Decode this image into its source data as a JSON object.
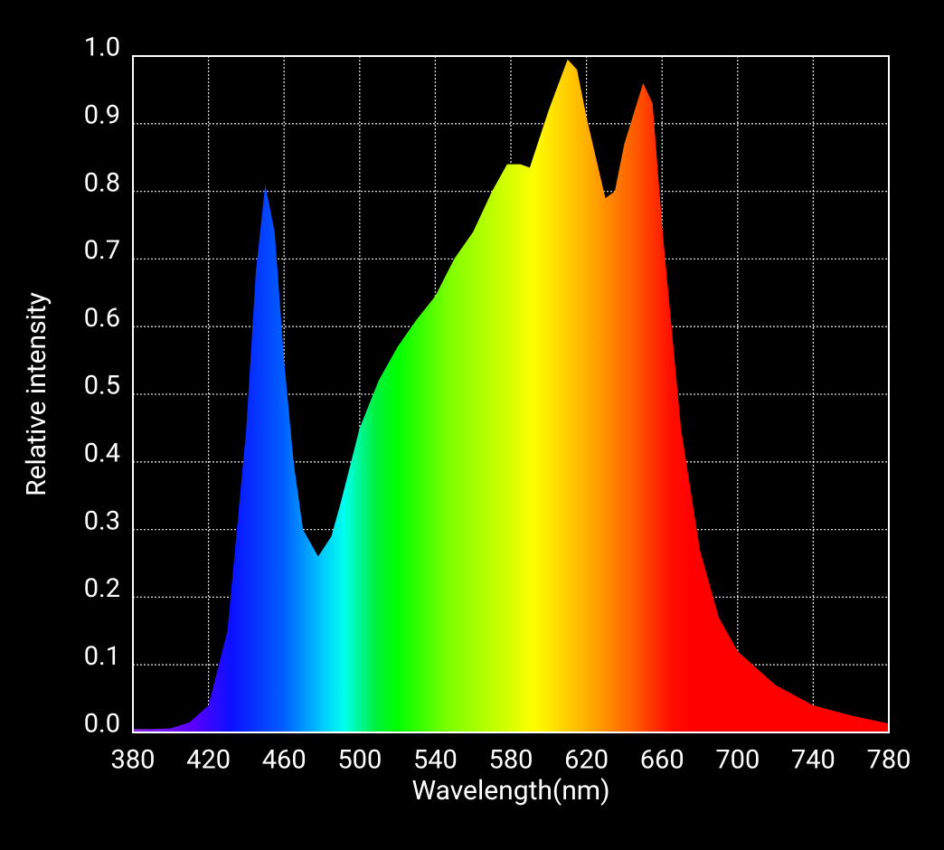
{
  "chart_data": {
    "type": "area",
    "x_label": "Wavelength(nm)",
    "y_label": "Relative intensity",
    "x": [
      380,
      390,
      400,
      410,
      420,
      430,
      440,
      445,
      450,
      455,
      460,
      465,
      470,
      478,
      485,
      490,
      500,
      510,
      520,
      530,
      540,
      550,
      560,
      570,
      578,
      585,
      590,
      600,
      610,
      615,
      620,
      630,
      635,
      640,
      650,
      655,
      660,
      670,
      680,
      690,
      700,
      710,
      720,
      740,
      760,
      780
    ],
    "values": [
      0.005,
      0.005,
      0.006,
      0.015,
      0.04,
      0.15,
      0.45,
      0.68,
      0.81,
      0.74,
      0.55,
      0.4,
      0.3,
      0.26,
      0.29,
      0.34,
      0.45,
      0.52,
      0.57,
      0.61,
      0.645,
      0.7,
      0.74,
      0.8,
      0.84,
      0.84,
      0.835,
      0.92,
      0.995,
      0.98,
      0.91,
      0.79,
      0.8,
      0.87,
      0.96,
      0.93,
      0.75,
      0.45,
      0.27,
      0.17,
      0.12,
      0.095,
      0.07,
      0.04,
      0.025,
      0.013
    ],
    "xlim": [
      380,
      780
    ],
    "ylim": [
      0,
      1
    ],
    "xticks": [
      380,
      420,
      460,
      500,
      540,
      580,
      620,
      660,
      700,
      740,
      780
    ],
    "yticks": [
      {
        "value": 0,
        "label": "0.0"
      },
      0.1,
      0.2,
      0.3,
      0.4,
      0.5,
      0.6,
      0.7,
      0.8,
      0.9,
      {
        "value": 1,
        "label": "1.0"
      }
    ],
    "grid": true
  }
}
